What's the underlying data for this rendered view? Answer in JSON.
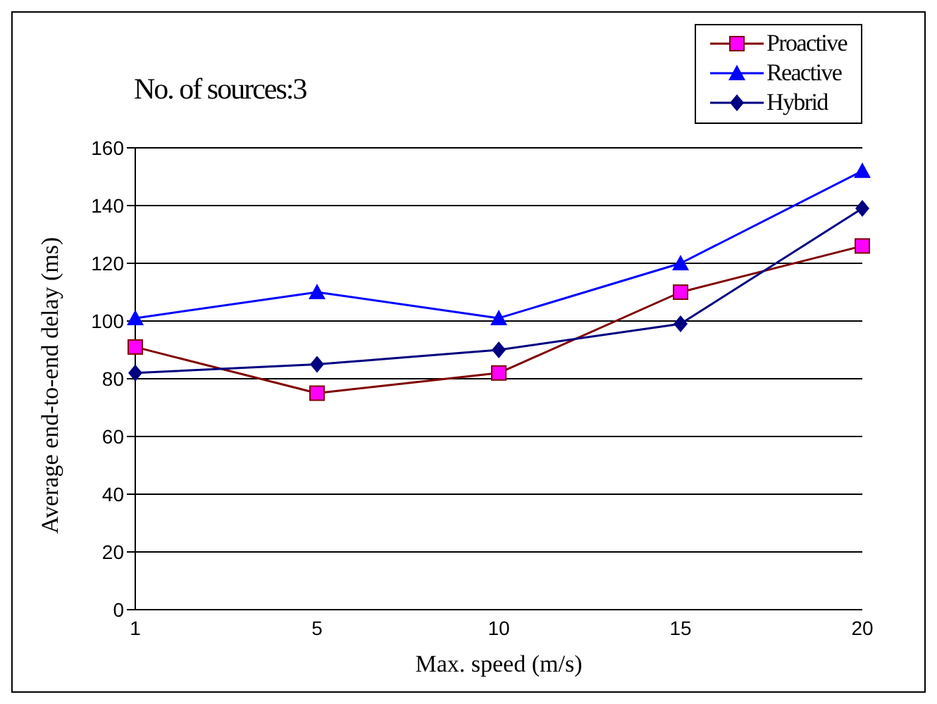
{
  "chart_data": {
    "type": "line",
    "title": "No. of sources:3",
    "xlabel": "Max. speed (m/s)",
    "ylabel": "Average end-to-end delay (ms)",
    "categories": [
      "1",
      "5",
      "10",
      "15",
      "20"
    ],
    "series": [
      {
        "name": "Proactive",
        "color": "#800000",
        "marker": "square",
        "values": [
          91,
          75,
          82,
          110,
          126
        ]
      },
      {
        "name": "Reactive",
        "color": "#0000ff",
        "marker": "triangle",
        "values": [
          101,
          110,
          101,
          120,
          152
        ]
      },
      {
        "name": "Hybrid",
        "color": "#000080",
        "marker": "diamond",
        "values": [
          82,
          85,
          90,
          99,
          139
        ]
      }
    ],
    "ylim": [
      0,
      160
    ],
    "yticks": [
      0,
      20,
      40,
      60,
      80,
      100,
      120,
      140,
      160
    ],
    "grid": "y",
    "legend": "top right"
  }
}
